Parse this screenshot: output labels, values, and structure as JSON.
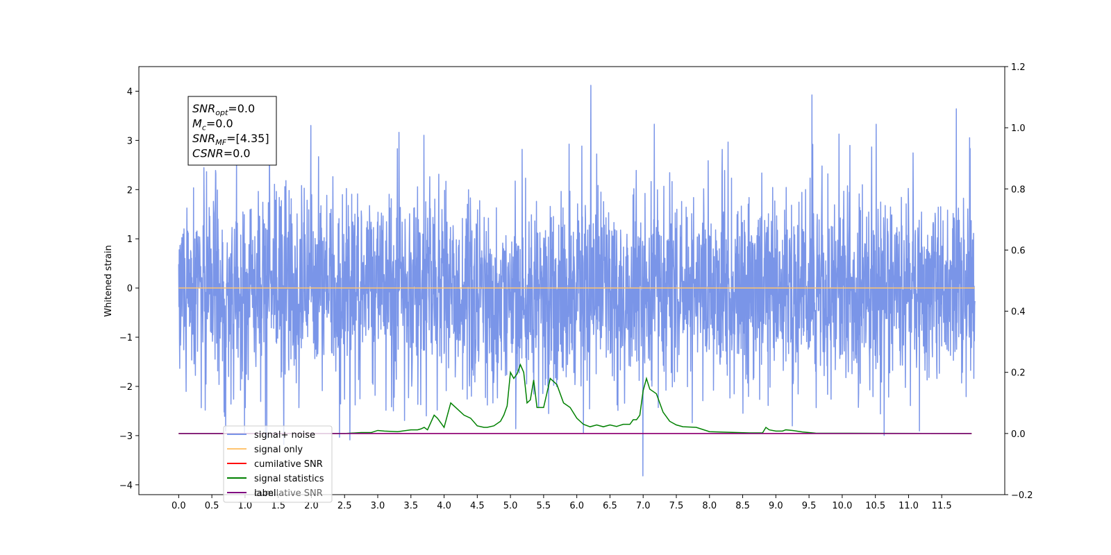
{
  "chart_data": {
    "type": "line",
    "ylabel": "Whitened strain",
    "xlim": [
      -0.6,
      12.45
    ],
    "ylim_left": [
      -4.2,
      4.5
    ],
    "ylim_right": [
      -0.2,
      1.2
    ],
    "x_ticks": [
      "0.0",
      "0.5",
      "1.0",
      "1.5",
      "2.0",
      "2.5",
      "3.0",
      "3.5",
      "4.0",
      "4.5",
      "5.0",
      "5.5",
      "6.0",
      "6.5",
      "7.0",
      "7.5",
      "8.0",
      "8.5",
      "9.0",
      "9.5",
      "10.0",
      "10.5",
      "11.0",
      "11.5"
    ],
    "y_ticks_left": [
      "−4",
      "−3",
      "−2",
      "−1",
      "0",
      "1",
      "2",
      "3",
      "4"
    ],
    "y_ticks_right": [
      "−0.2",
      "0.0",
      "0.2",
      "0.4",
      "0.6",
      "0.8",
      "1.0",
      "1.2"
    ],
    "info_box": [
      {
        "base": "SNR",
        "sub": "opt",
        "rest": "=0.0"
      },
      {
        "base": "M",
        "sub": "c",
        "rest": "=0.0"
      },
      {
        "base": "SNR",
        "sub": "MF",
        "rest": "=[4.35]"
      },
      {
        "base": "CSNR",
        "sub": "",
        "rest": "=0.0"
      }
    ],
    "legend": {
      "placement": "lower-left",
      "entries": [
        {
          "label": "signal+ noise",
          "color": "#7a95e8"
        },
        {
          "label": "signal only",
          "color": "#ffc470"
        },
        {
          "label": "cumilative SNR",
          "color": "#ff0000"
        },
        {
          "label": "signal statistics",
          "color": "#008000"
        },
        {
          "label": "label",
          "color": "#800080"
        }
      ],
      "hidden_text": "cumilative SNR"
    },
    "series": [
      {
        "name": "signal+ noise",
        "axis": "left",
        "color": "#7a95e8",
        "x_range": [
          0.0,
          12.0
        ],
        "noise_sigma": 1.0,
        "mean": 0.0
      },
      {
        "name": "signal only",
        "axis": "left",
        "color": "#ffc470",
        "x": [
          0.0,
          12.0
        ],
        "y": [
          0.0,
          0.0
        ]
      },
      {
        "name": "cumilative SNR",
        "axis": "right",
        "color": "#ff0000",
        "x": [
          0.0,
          11.95
        ],
        "y": [
          0.0,
          0.0
        ]
      },
      {
        "name": "signal statistics",
        "axis": "right",
        "color": "#008000",
        "x": [
          0.0,
          2.5,
          2.75,
          2.9,
          3.0,
          3.1,
          3.3,
          3.5,
          3.6,
          3.65,
          3.7,
          3.75,
          3.85,
          3.9,
          3.95,
          4.0,
          4.05,
          4.1,
          4.2,
          4.3,
          4.4,
          4.5,
          4.6,
          4.65,
          4.75,
          4.85,
          4.9,
          4.95,
          5.0,
          5.05,
          5.1,
          5.15,
          5.2,
          5.25,
          5.3,
          5.35,
          5.4,
          5.5,
          5.6,
          5.7,
          5.8,
          5.9,
          6.0,
          6.1,
          6.2,
          6.3,
          6.4,
          6.5,
          6.6,
          6.7,
          6.8,
          6.85,
          6.9,
          6.95,
          7.0,
          7.05,
          7.1,
          7.2,
          7.3,
          7.4,
          7.5,
          7.6,
          7.8,
          8.0,
          8.6,
          8.8,
          8.85,
          8.9,
          9.0,
          9.1,
          9.15,
          9.25,
          9.4,
          9.6,
          11.95
        ],
        "y": [
          0.0,
          0.0,
          0.003,
          0.003,
          0.01,
          0.008,
          0.006,
          0.012,
          0.012,
          0.015,
          0.02,
          0.012,
          0.06,
          0.05,
          0.035,
          0.02,
          0.06,
          0.1,
          0.08,
          0.06,
          0.05,
          0.025,
          0.02,
          0.02,
          0.025,
          0.04,
          0.06,
          0.09,
          0.2,
          0.18,
          0.195,
          0.225,
          0.2,
          0.1,
          0.11,
          0.175,
          0.085,
          0.085,
          0.18,
          0.16,
          0.1,
          0.085,
          0.05,
          0.03,
          0.022,
          0.028,
          0.022,
          0.028,
          0.023,
          0.03,
          0.03,
          0.045,
          0.045,
          0.06,
          0.14,
          0.18,
          0.145,
          0.13,
          0.07,
          0.04,
          0.028,
          0.022,
          0.02,
          0.006,
          0.002,
          0.002,
          0.02,
          0.012,
          0.008,
          0.008,
          0.012,
          0.01,
          0.005,
          0.001,
          0.0
        ]
      },
      {
        "name": "label",
        "axis": "right",
        "color": "#800080",
        "x": [
          0.0,
          11.95
        ],
        "y": [
          0.0,
          0.0
        ]
      }
    ]
  }
}
